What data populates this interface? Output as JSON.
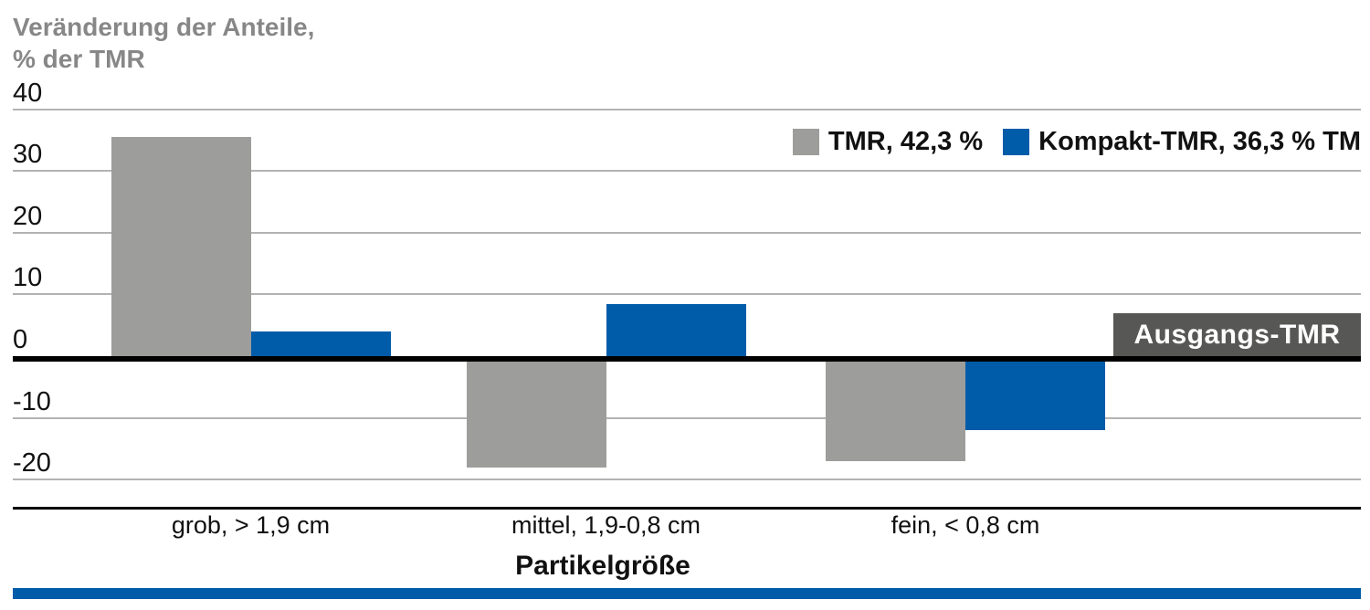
{
  "title": {
    "line1": "Veränderung der Anteile,",
    "line2": "% der TMR"
  },
  "xlabel": "Partikelgröße",
  "annotation": {
    "label": "Ausgangs-TMR"
  },
  "colors": {
    "tmr_gray": "#9d9d9c",
    "kompakt_blue": "#005ca9",
    "annotation_bg": "#575756",
    "title_gray": "#878787",
    "gridline_gray": "#b3b3b3",
    "zero_line_black": "#000000",
    "accent_blue": "#005ca9"
  },
  "chart_data": {
    "type": "bar",
    "title": "Veränderung der Anteile, % der TMR",
    "ylabel": "Veränderung der Anteile, % der TMR",
    "xlabel": "Partikelgröße",
    "categories": [
      "grob, > 1,9 cm",
      "mittel, 1,9-0,8 cm",
      "fein, < 0,8 cm"
    ],
    "series": [
      {
        "name": "TMR, 42,3 %",
        "color": "#9d9d9c",
        "values": [
          35.5,
          -18,
          -17
        ]
      },
      {
        "name": "Kompakt-TMR, 36,3 % TM",
        "color": "#005ca9",
        "values": [
          4,
          8.5,
          -12
        ]
      }
    ],
    "yticks": [
      40,
      30,
      20,
      10,
      0,
      -10,
      -20
    ],
    "ylim": [
      -24.5,
      40
    ],
    "grid": true,
    "legend_position": "top-right",
    "annotations": [
      {
        "text": "Ausgangs-TMR",
        "y": 0
      }
    ]
  }
}
